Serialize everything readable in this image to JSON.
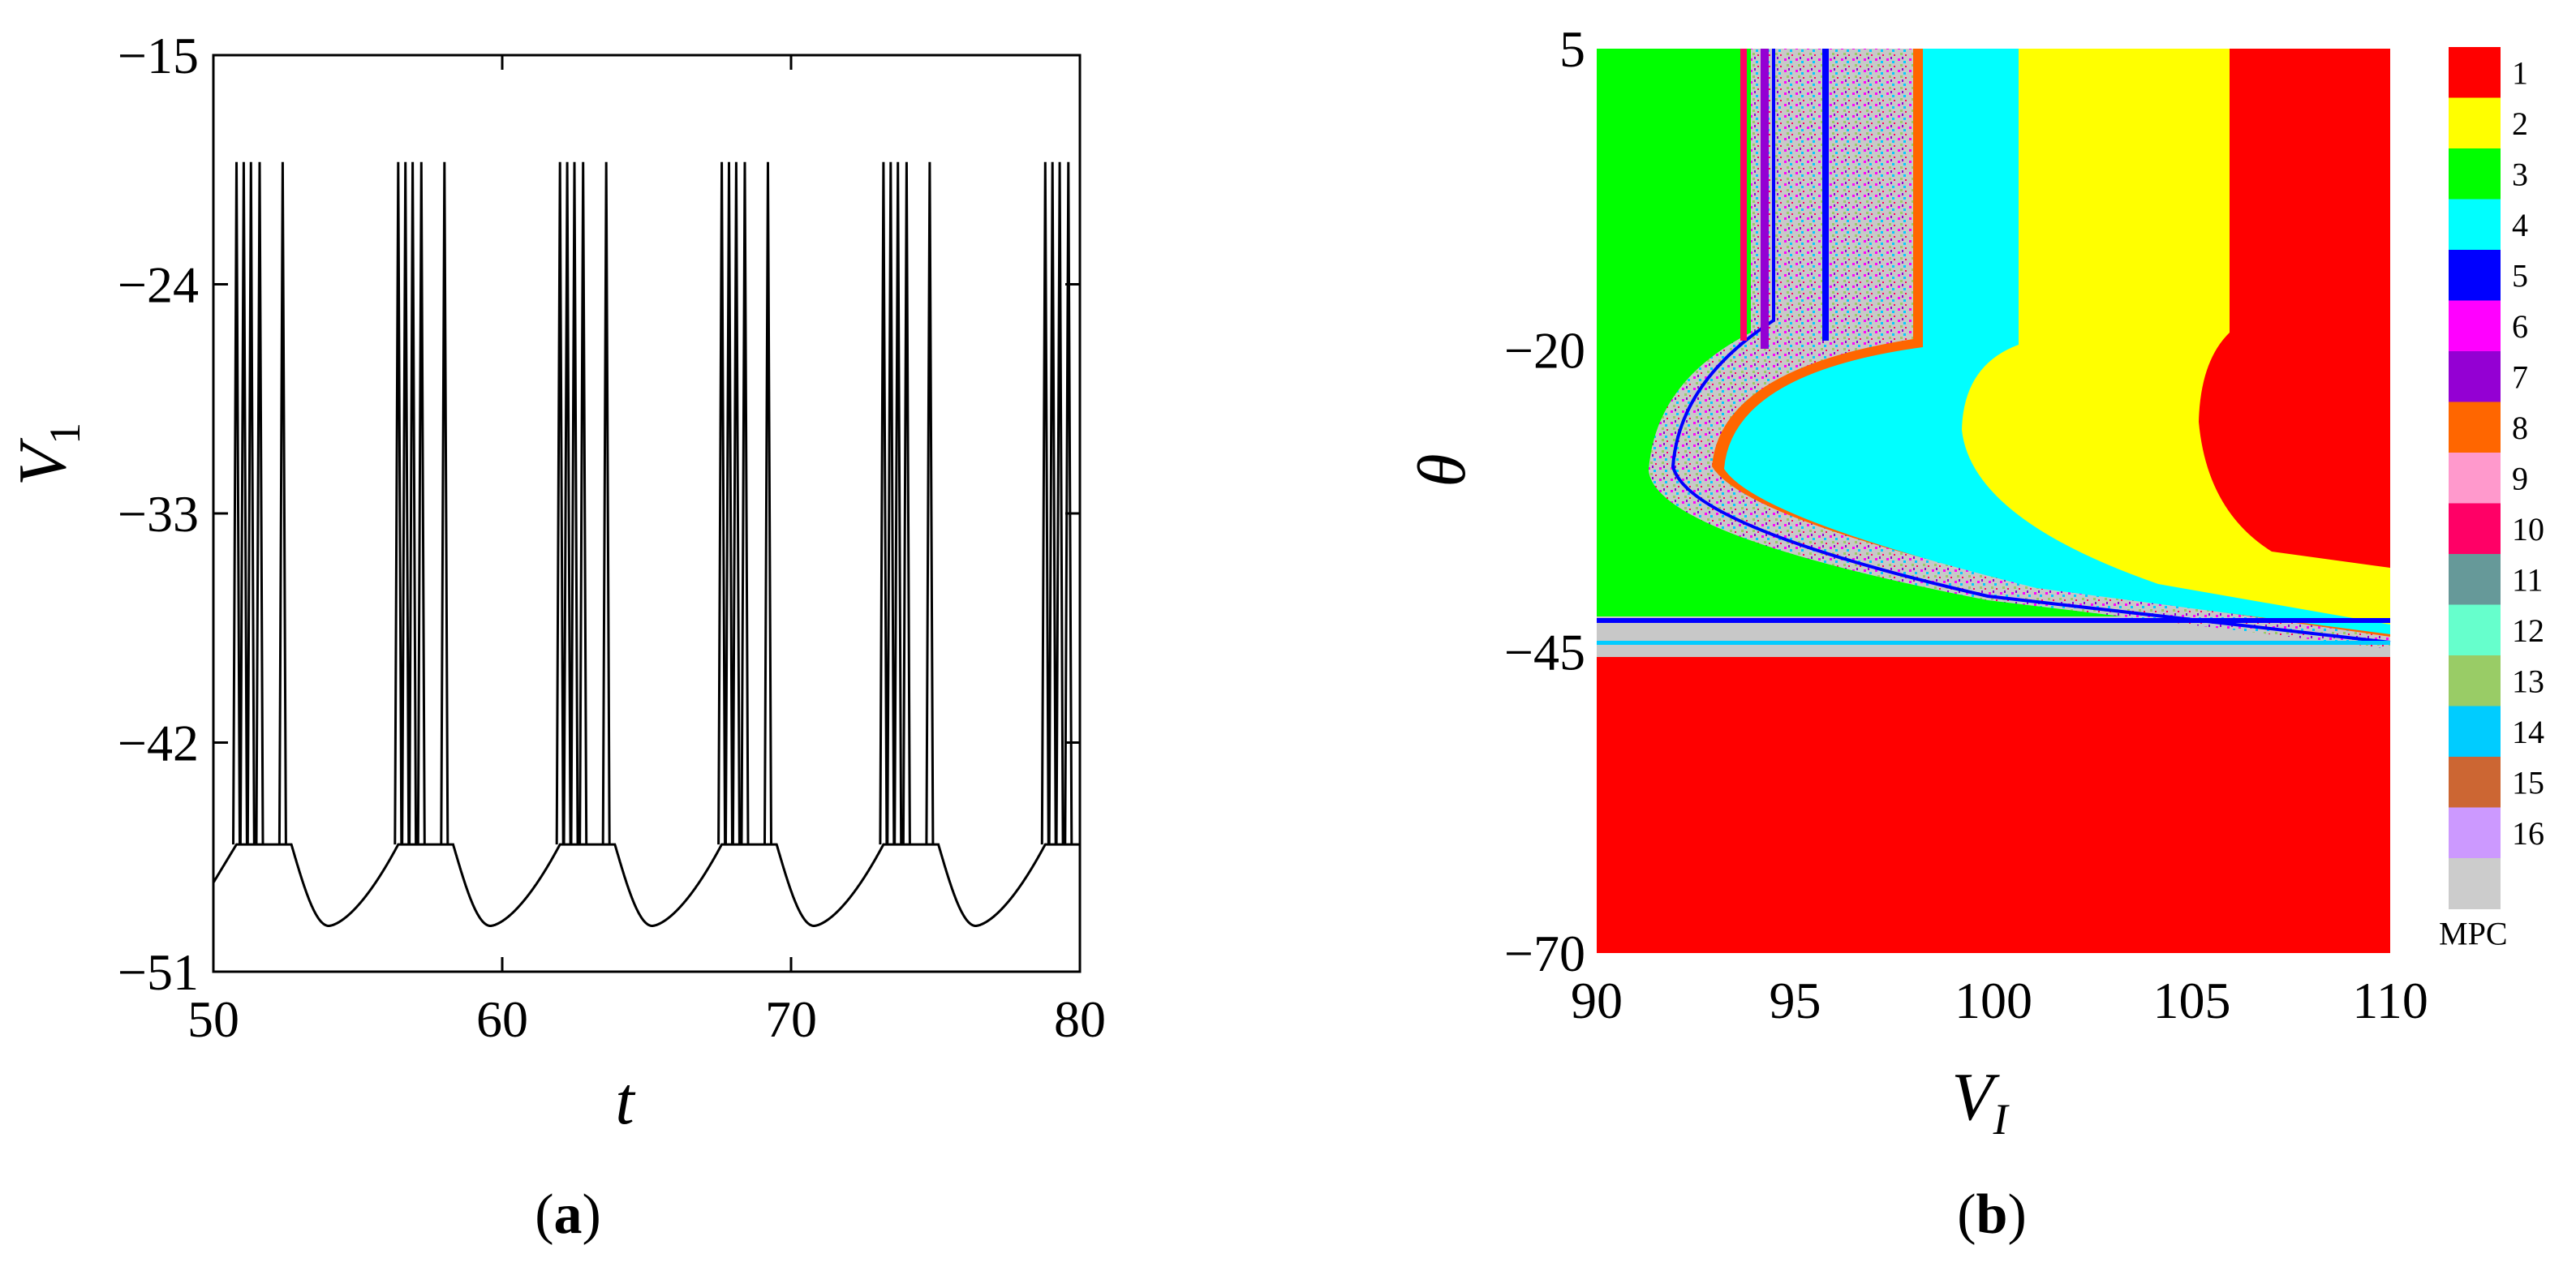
{
  "chart_data": [
    {
      "panel": "a",
      "type": "line",
      "xlabel": "t",
      "ylabel": "V",
      "ylabel_sub": "1",
      "xlim": [
        50,
        80
      ],
      "ylim": [
        -51,
        -15
      ],
      "xticks": [
        "50",
        "60",
        "70",
        "80"
      ],
      "yticks": [
        "-15",
        "-24",
        "-33",
        "-42",
        "-51"
      ],
      "burst_period": 5.6,
      "burst_starts": [
        50.8,
        56.4,
        62.0,
        67.6,
        73.2,
        78.8
      ],
      "spikes_per_burst": 5,
      "spike_peak": -19.2,
      "plateau_level": -46.0,
      "trough_level": -49.2,
      "line_color": "#000000"
    },
    {
      "panel": "b",
      "type": "heatmap",
      "xlabel": "V",
      "xlabel_sub": "I",
      "ylabel": "θ",
      "xlim": [
        90,
        110
      ],
      "ylim": [
        -70,
        5
      ],
      "xticks": [
        "90",
        "95",
        "100",
        "105",
        "110"
      ],
      "yticks": [
        "5",
        "-20",
        "-45",
        "-70"
      ],
      "regions": [
        {
          "label": "1",
          "desc": "lower block",
          "x": [
            90,
            110
          ],
          "y": [
            -70,
            -45.8
          ]
        },
        {
          "label": "3",
          "desc": "left band",
          "x": [
            90,
            93.8
          ],
          "y": [
            -45,
            5
          ]
        },
        {
          "label": "MPC",
          "desc": "mixed band",
          "x": [
            93.8,
            97.8
          ],
          "y": [
            -20,
            5
          ]
        },
        {
          "label": "4",
          "desc": "cyan band",
          "x": [
            98,
            101
          ],
          "y": [
            -45,
            5
          ]
        },
        {
          "label": "2",
          "desc": "yellow band",
          "x": [
            101,
            106
          ],
          "y": [
            -45,
            5
          ]
        },
        {
          "label": "1",
          "desc": "right band",
          "x": [
            106,
            110
          ],
          "y": [
            -42,
            5
          ]
        }
      ],
      "legend": {
        "position": "right",
        "entries": [
          {
            "label": "1",
            "color": "#ff0000"
          },
          {
            "label": "2",
            "color": "#ffff00"
          },
          {
            "label": "3",
            "color": "#00ff00"
          },
          {
            "label": "4",
            "color": "#00ffff"
          },
          {
            "label": "5",
            "color": "#0000ff"
          },
          {
            "label": "6",
            "color": "#ff00ff"
          },
          {
            "label": "7",
            "color": "#9400d3"
          },
          {
            "label": "8",
            "color": "#ff6600"
          },
          {
            "label": "9",
            "color": "#ff99cc"
          },
          {
            "label": "10",
            "color": "#ff0066"
          },
          {
            "label": "11",
            "color": "#669999"
          },
          {
            "label": "12",
            "color": "#66ffcc"
          },
          {
            "label": "13",
            "color": "#99cc66"
          },
          {
            "label": "14",
            "color": "#00ccff"
          },
          {
            "label": "15",
            "color": "#cc6633"
          },
          {
            "label": "16",
            "color": "#cc99ff"
          },
          {
            "label": "MPC",
            "color": "#cccccc"
          }
        ]
      }
    }
  ],
  "captions": {
    "a": "a",
    "b": "b"
  }
}
